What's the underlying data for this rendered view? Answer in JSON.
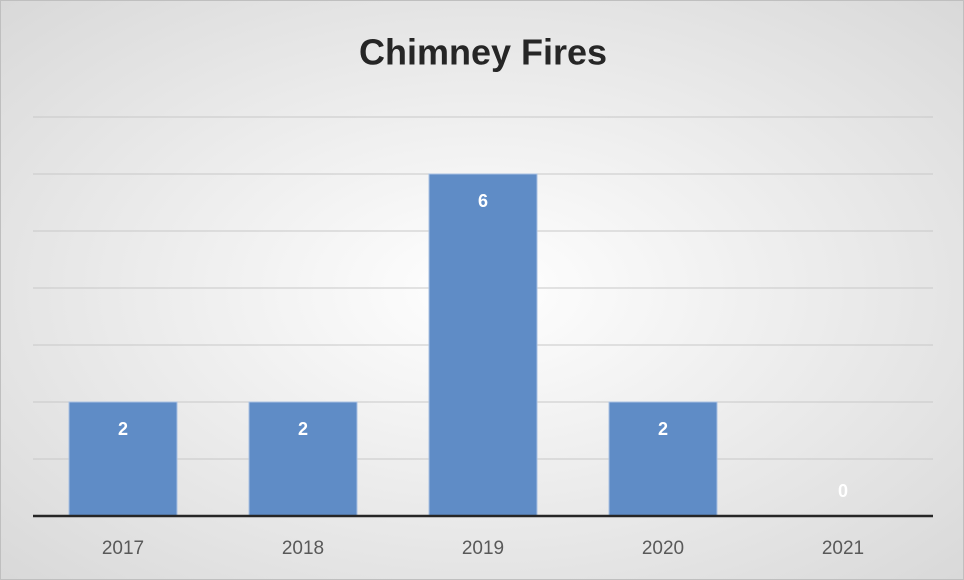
{
  "chart_data": {
    "type": "bar",
    "title": "Chimney Fires",
    "categories": [
      "2017",
      "2018",
      "2019",
      "2020",
      "2021"
    ],
    "values": [
      2,
      2,
      6,
      2,
      0
    ],
    "color": "#5f8cc6",
    "ylim": [
      0,
      7
    ],
    "yticks": [
      0,
      1,
      2,
      3,
      4,
      5,
      6,
      7
    ],
    "grid": true
  }
}
